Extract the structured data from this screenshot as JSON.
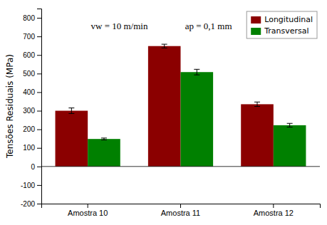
{
  "chart_data": {
    "type": "bar",
    "categories": [
      "Amostra 10",
      "Amostra 11",
      "Amostra 12"
    ],
    "series": [
      {
        "name": "Longitudinal",
        "color": "#8B0000",
        "values": [
          300,
          648,
          335
        ],
        "errors": [
          15,
          10,
          12
        ]
      },
      {
        "name": "Transversal",
        "color": "#008000",
        "values": [
          148,
          508,
          222
        ],
        "errors": [
          5,
          15,
          10
        ]
      }
    ],
    "ylabel": "Tensões Residuais (MPa)",
    "ylim": [
      -200,
      850
    ],
    "yticks": [
      -200,
      -100,
      0,
      100,
      200,
      300,
      400,
      500,
      600,
      700,
      800
    ],
    "annotations": [
      "vw = 10 m/min",
      "ap = 0,1 mm"
    ],
    "legend": "upper right",
    "grid": false
  }
}
